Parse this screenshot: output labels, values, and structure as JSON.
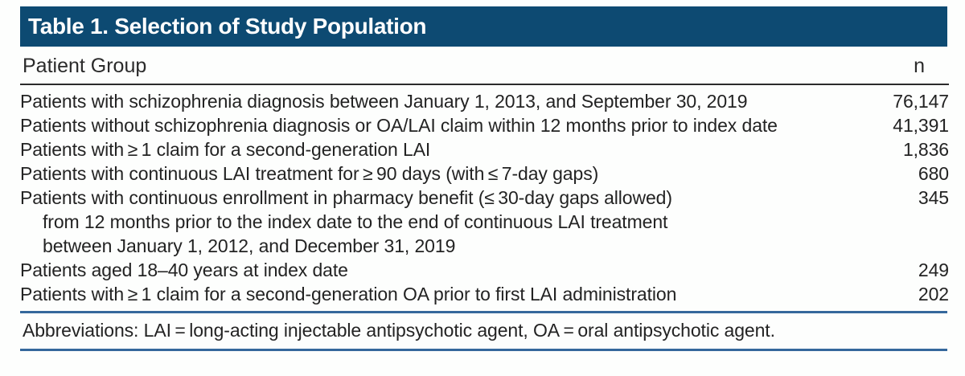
{
  "title_bar": {
    "title": "Table 1. Selection of Study Population"
  },
  "table": {
    "columns": [
      "Patient Group",
      "n"
    ],
    "rows": [
      {
        "lines": [
          "Patients with schizophrenia diagnosis between January 1, 2013, and September 30, 2019"
        ],
        "n": "76,147"
      },
      {
        "lines": [
          "Patients without schizophrenia diagnosis or OA/LAI claim within 12 months prior to index date"
        ],
        "n": "41,391"
      },
      {
        "lines": [
          "Patients with ≥ 1 claim for a second-generation LAI"
        ],
        "n": "1,836"
      },
      {
        "lines": [
          "Patients with continuous LAI treatment for ≥ 90 days (with ≤ 7-day gaps)"
        ],
        "n": "680"
      },
      {
        "lines": [
          "Patients with continuous enrollment in pharmacy benefit (≤ 30-day gaps allowed)",
          "from 12 months prior to the index date to the end of continuous LAI treatment",
          "between January 1, 2012, and December 31, 2019"
        ],
        "n": "345"
      },
      {
        "lines": [
          "Patients aged 18–40 years at index date"
        ],
        "n": "249"
      },
      {
        "lines": [
          "Patients with ≥ 1 claim for a second-generation OA prior to first LAI administration"
        ],
        "n": "202"
      }
    ]
  },
  "footer": {
    "abbreviations": "Abbreviations: LAI = long-acting injectable antipsychotic agent, OA = oral antipsychotic agent."
  },
  "colors": {
    "title_bar_background": "#0d4a72",
    "title_text": "#ffffff",
    "header_rule": "#2b2b2b",
    "blue_rule": "#35689c",
    "body_text": "#232323"
  }
}
